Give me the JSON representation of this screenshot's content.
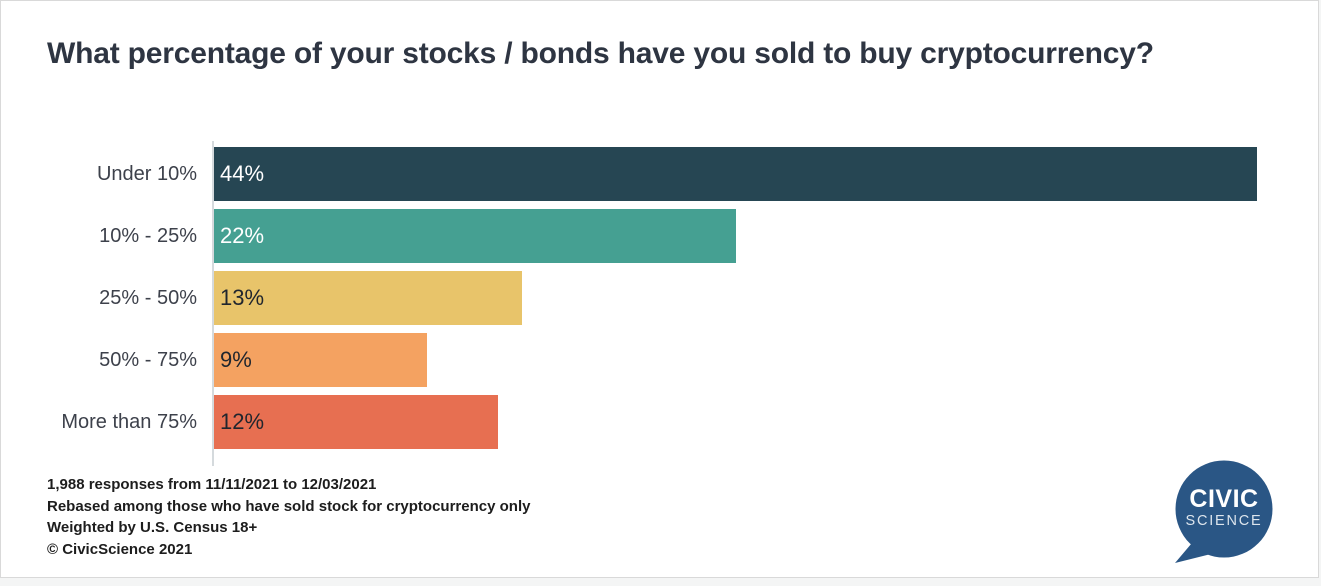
{
  "title": "What percentage of your stocks / bonds have you sold to buy cryptocurrency?",
  "chart_data": {
    "type": "bar",
    "orientation": "horizontal",
    "title": "What percentage of your stocks / bonds have you sold to buy cryptocurrency?",
    "categories": [
      "Under 10%",
      "10% - 25%",
      "25% - 50%",
      "50% - 75%",
      "More than 75%"
    ],
    "values": [
      44,
      22,
      13,
      9,
      12
    ],
    "value_labels": [
      "44%",
      "22%",
      "13%",
      "9%",
      "12%"
    ],
    "bar_colors": [
      "#264653",
      "#45a092",
      "#e8c46a",
      "#f4a261",
      "#e76f51"
    ],
    "value_label_colors": [
      "#ffffff",
      "#ffffff",
      "#20262e",
      "#20262e",
      "#20262e"
    ],
    "xlabel": "",
    "ylabel": "",
    "xlim": [
      0,
      44
    ],
    "grid": false,
    "legend": false
  },
  "footer": {
    "lines": [
      "1,988 responses from 11/11/2021 to 12/03/2021",
      "Rebased among those who have sold stock for cryptocurrency only",
      "Weighted by U.S. Census 18+",
      "© CivicScience 2021"
    ]
  },
  "logo": {
    "line1": "CIVIC",
    "line2": "SCIENCE",
    "bubble_color": "#2a5685"
  },
  "colors": {
    "title_text": "#2e3542",
    "category_text": "#3d414b",
    "footer_text": "#1d1d1d",
    "axis_line": "#d5dadd",
    "card_border": "#d9d9d9",
    "page_background": "#f4f5f5"
  }
}
